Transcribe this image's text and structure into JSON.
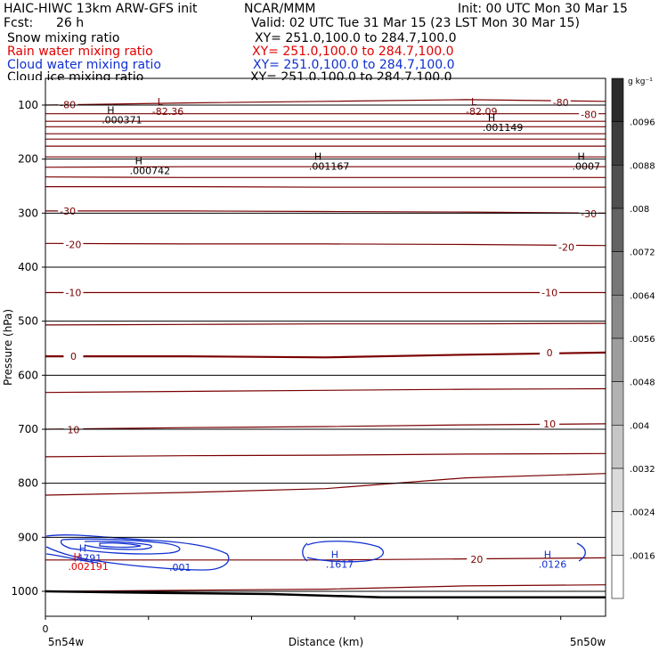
{
  "header": {
    "title": "HAIC-HIWC 13km ARW-GFS init",
    "org": "NCAR/MMM",
    "init": "Init: 00 UTC Mon 30 Mar 15",
    "fcst_label": "Fcst:",
    "fcst_value": "26 h",
    "valid": "Valid: 02 UTC Tue 31 Mar 15 (23 LST Mon 30 Mar 15)"
  },
  "fields": [
    {
      "name": "Snow mixing ratio",
      "xy": "XY= 251.0,100.0 to 284.7,100.0",
      "color": "#000000"
    },
    {
      "name": "Rain water mixing ratio",
      "xy": "XY= 251.0,100.0 to 284.7,100.0",
      "color": "#e00000"
    },
    {
      "name": "Cloud water mixing ratio",
      "xy": "XY= 251.0,100.0 to 284.7,100.0",
      "color": "#1030d0"
    },
    {
      "name": "Cloud ice mixing ratio",
      "xy": "XY= 251.0,100.0 to 284.7,100.0",
      "color": "#000000"
    }
  ],
  "chart_data": {
    "type": "line",
    "xlabel": "Distance (km)",
    "ylabel": "Pressure (hPa)",
    "x_ticks": [
      "0"
    ],
    "x_endpoints": [
      "5n54w",
      "5n50w"
    ],
    "y_ticks": [
      100,
      200,
      300,
      400,
      500,
      600,
      700,
      800,
      900,
      1000
    ],
    "ylim": [
      1050,
      75
    ],
    "xlim": [
      0,
      1
    ],
    "colorbar": {
      "unit_label": "g kg⁻¹",
      "labels": [
        ".0096",
        ".0088",
        ".008",
        ".0072",
        ".0064",
        ".0056",
        ".0048",
        ".004",
        ".0032",
        ".0024",
        ".0016"
      ],
      "fills": [
        "#2a2a2a",
        "#3d3d3d",
        "#505050",
        "#636363",
        "#777777",
        "#8a8a8a",
        "#9d9d9d",
        "#b2b2b2",
        "#c6c6c6",
        "#dadada",
        "#ececec",
        "#ffffff"
      ]
    },
    "temperature_labels": [
      {
        "text": "-80",
        "x": 0.04,
        "p": 99
      },
      {
        "text": "-80",
        "x": 0.92,
        "p": 95
      },
      {
        "text": "-80",
        "x": 0.97,
        "p": 117
      },
      {
        "text": "-30",
        "x": 0.04,
        "p": 296
      },
      {
        "text": "-30",
        "x": 0.97,
        "p": 301
      },
      {
        "text": "-20",
        "x": 0.05,
        "p": 358
      },
      {
        "text": "-20",
        "x": 0.93,
        "p": 363
      },
      {
        "text": "-10",
        "x": 0.05,
        "p": 447
      },
      {
        "text": "-10",
        "x": 0.9,
        "p": 447
      },
      {
        "text": "0",
        "x": 0.05,
        "p": 565
      },
      {
        "text": "0",
        "x": 0.9,
        "p": 558
      },
      {
        "text": "10",
        "x": 0.05,
        "p": 701
      },
      {
        "text": "10",
        "x": 0.9,
        "p": 690
      },
      {
        "text": "20",
        "x": 0.77,
        "p": 941
      }
    ],
    "temperature_isotherms": [
      {
        "p": [
          100,
          96,
          93,
          90,
          93
        ]
      },
      {
        "p": [
          116,
          116,
          116,
          116,
          116
        ]
      },
      {
        "p": [
          130,
          130,
          130,
          130,
          130
        ]
      },
      {
        "p": [
          140,
          140,
          140,
          140,
          140
        ]
      },
      {
        "p": [
          153,
          153,
          153,
          153,
          153
        ]
      },
      {
        "p": [
          163,
          163,
          163,
          163,
          163
        ]
      },
      {
        "p": [
          176,
          176,
          176,
          176,
          176
        ]
      },
      {
        "p": [
          196,
          196,
          196,
          196,
          196
        ]
      },
      {
        "p": [
          215,
          214,
          214,
          214,
          214
        ]
      },
      {
        "p": [
          233,
          234,
          234,
          234,
          234
        ]
      },
      {
        "p": [
          251,
          251,
          252,
          252,
          252
        ]
      },
      {
        "p": [
          296,
          296,
          297,
          298,
          300
        ]
      },
      {
        "p": [
          356,
          357,
          357,
          358,
          360
        ]
      },
      {
        "p": [
          447,
          447,
          447,
          447,
          447
        ]
      },
      {
        "p": [
          507,
          506,
          505,
          505,
          504
        ]
      },
      {
        "p": [
          565,
          565,
          567,
          562,
          558
        ]
      },
      {
        "p": [
          632,
          630,
          628,
          626,
          625
        ]
      },
      {
        "p": [
          700,
          697,
          695,
          692,
          690
        ]
      },
      {
        "p": [
          751,
          749,
          748,
          746,
          745
        ]
      },
      {
        "p": [
          822,
          817,
          810,
          790,
          782
        ]
      },
      {
        "p": [
          942,
          942,
          942,
          940,
          938
        ]
      },
      {
        "p": [
          1000,
          998,
          996,
          990,
          988
        ]
      }
    ],
    "extrema": [
      {
        "mark": "L",
        "value": "-82.36",
        "x": 0.2,
        "p": 100,
        "color": "#7a0000"
      },
      {
        "mark": "L",
        "value": "-82.09",
        "x": 0.76,
        "p": 100,
        "color": "#7a0000"
      },
      {
        "mark": "H",
        "value": ".000371",
        "x": 0.11,
        "p": 116,
        "color": "#000000"
      },
      {
        "mark": "H",
        "value": ".001149",
        "x": 0.79,
        "p": 130,
        "color": "#000000"
      },
      {
        "mark": "H",
        "value": ".000742",
        "x": 0.16,
        "p": 210,
        "color": "#000000"
      },
      {
        "mark": "H",
        "value": ".001167",
        "x": 0.48,
        "p": 201,
        "color": "#000000"
      },
      {
        "mark": "H",
        "value": ".0007",
        "x": 0.95,
        "p": 201,
        "color": "#000000"
      },
      {
        "mark": "H",
        "value": ".4791",
        "x": 0.06,
        "p": 927,
        "color": "#1030d0"
      },
      {
        "mark": "H",
        "value": ".1617",
        "x": 0.51,
        "p": 938,
        "color": "#1030d0"
      },
      {
        "mark": "H",
        "value": ".0126",
        "x": 0.89,
        "p": 938,
        "color": "#1030d0"
      },
      {
        "mark": "H",
        "value": ".002191",
        "x": 0.05,
        "p": 942,
        "color": "#e00000"
      }
    ],
    "cloud_contour_label": ".001",
    "surface_pressure": {
      "x": [
        0,
        0.2,
        0.4,
        0.6,
        0.8,
        1
      ],
      "p": [
        1000,
        1003,
        1005,
        1011,
        1011,
        1011
      ]
    }
  }
}
